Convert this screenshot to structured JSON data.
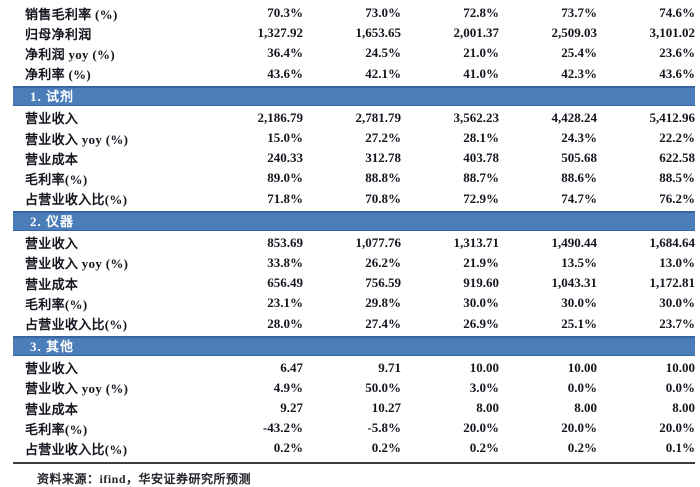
{
  "colors": {
    "section_bar": "#4b7db8",
    "section_bar_border": "#38659f",
    "text": "#15151f",
    "bottom_rule": "#3d3d3d"
  },
  "table": {
    "top_rows": [
      {
        "label": "销售毛利率 (%)",
        "values": [
          "70.3%",
          "73.0%",
          "72.8%",
          "73.7%",
          "74.6%"
        ]
      },
      {
        "label": "归母净利润",
        "values": [
          "1,327.92",
          "1,653.65",
          "2,001.37",
          "2,509.03",
          "3,101.02"
        ]
      },
      {
        "label": "净利润 yoy (%)",
        "values": [
          "36.4%",
          "24.5%",
          "21.0%",
          "25.4%",
          "23.6%"
        ]
      },
      {
        "label": "净利率 (%)",
        "values": [
          "43.6%",
          "42.1%",
          "41.0%",
          "42.3%",
          "43.6%"
        ]
      }
    ],
    "sections": [
      {
        "title": "1. 试剂",
        "rows": [
          {
            "label": "营业收入",
            "values": [
              "2,186.79",
              "2,781.79",
              "3,562.23",
              "4,428.24",
              "5,412.96"
            ]
          },
          {
            "label": "营业收入 yoy (%)",
            "values": [
              "15.0%",
              "27.2%",
              "28.1%",
              "24.3%",
              "22.2%"
            ]
          },
          {
            "label": "营业成本",
            "values": [
              "240.33",
              "312.78",
              "403.78",
              "505.68",
              "622.58"
            ]
          },
          {
            "label": "毛利率(%)",
            "values": [
              "89.0%",
              "88.8%",
              "88.7%",
              "88.6%",
              "88.5%"
            ]
          },
          {
            "label": "占营业收入比(%)",
            "values": [
              "71.8%",
              "70.8%",
              "72.9%",
              "74.7%",
              "76.2%"
            ]
          }
        ]
      },
      {
        "title": "2. 仪器",
        "rows": [
          {
            "label": "营业收入",
            "values": [
              "853.69",
              "1,077.76",
              "1,313.71",
              "1,490.44",
              "1,684.64"
            ]
          },
          {
            "label": "营业收入 yoy (%)",
            "values": [
              "33.8%",
              "26.2%",
              "21.9%",
              "13.5%",
              "13.0%"
            ]
          },
          {
            "label": "营业成本",
            "values": [
              "656.49",
              "756.59",
              "919.60",
              "1,043.31",
              "1,172.81"
            ]
          },
          {
            "label": "毛利率(%)",
            "values": [
              "23.1%",
              "29.8%",
              "30.0%",
              "30.0%",
              "30.0%"
            ]
          },
          {
            "label": "占营业收入比(%)",
            "values": [
              "28.0%",
              "27.4%",
              "26.9%",
              "25.1%",
              "23.7%"
            ]
          }
        ]
      },
      {
        "title": "3. 其他",
        "rows": [
          {
            "label": "营业收入",
            "values": [
              "6.47",
              "9.71",
              "10.00",
              "10.00",
              "10.00"
            ]
          },
          {
            "label": "营业收入 yoy (%)",
            "values": [
              "4.9%",
              "50.0%",
              "3.0%",
              "0.0%",
              "0.0%"
            ]
          },
          {
            "label": "营业成本",
            "values": [
              "9.27",
              "10.27",
              "8.00",
              "8.00",
              "8.00"
            ]
          },
          {
            "label": "毛利率(%)",
            "values": [
              "-43.2%",
              "-5.8%",
              "20.0%",
              "20.0%",
              "20.0%"
            ]
          },
          {
            "label": "占营业收入比(%)",
            "values": [
              "0.2%",
              "0.2%",
              "0.2%",
              "0.2%",
              "0.1%"
            ]
          }
        ]
      }
    ]
  },
  "footer": {
    "source_note": "资料来源：ifind，华安证券研究所预测"
  }
}
